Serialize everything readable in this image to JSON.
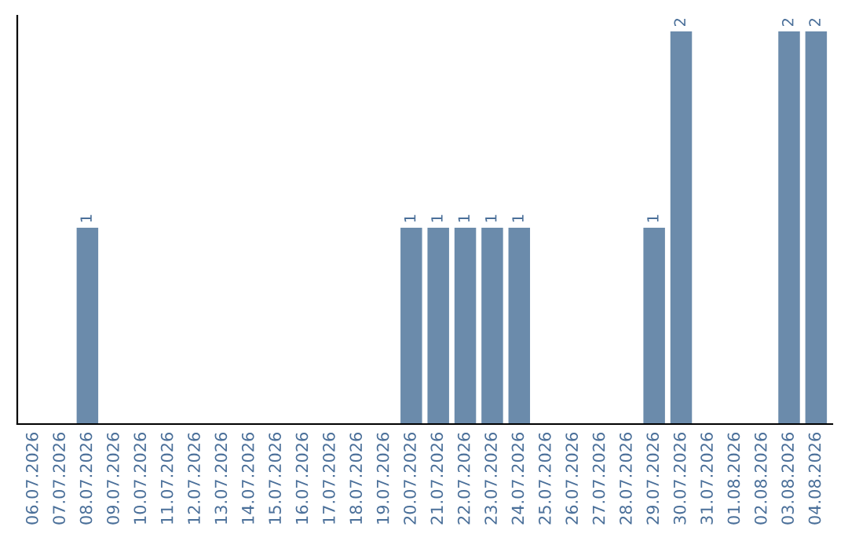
{
  "chart_data": {
    "type": "bar",
    "categories": [
      "06.07.2026",
      "07.07.2026",
      "08.07.2026",
      "09.07.2026",
      "10.07.2026",
      "11.07.2026",
      "12.07.2026",
      "13.07.2026",
      "14.07.2026",
      "15.07.2026",
      "16.07.2026",
      "17.07.2026",
      "18.07.2026",
      "19.07.2026",
      "20.07.2026",
      "21.07.2026",
      "22.07.2026",
      "23.07.2026",
      "24.07.2026",
      "25.07.2026",
      "26.07.2026",
      "27.07.2026",
      "28.07.2026",
      "29.07.2026",
      "30.07.2026",
      "31.07.2026",
      "01.08.2026",
      "02.08.2026",
      "03.08.2026",
      "04.08.2026"
    ],
    "values": [
      0,
      0,
      1,
      0,
      0,
      0,
      0,
      0,
      0,
      0,
      0,
      0,
      0,
      0,
      1,
      1,
      1,
      1,
      1,
      0,
      0,
      0,
      0,
      1,
      2,
      0,
      0,
      0,
      2,
      2
    ],
    "value_labels": [
      null,
      null,
      "1",
      null,
      null,
      null,
      null,
      null,
      null,
      null,
      null,
      null,
      null,
      null,
      "1",
      "1",
      "1",
      "1",
      "1",
      null,
      null,
      null,
      null,
      "1",
      "2",
      null,
      null,
      null,
      "2",
      "2"
    ],
    "color": "#6b8bab",
    "tick_labels": "x",
    "grid": false,
    "legend": false
  }
}
